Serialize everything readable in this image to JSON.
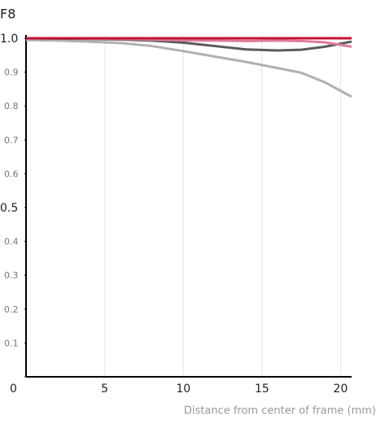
{
  "chart_data": {
    "type": "line",
    "title": "F8",
    "x_label": "Distance from center of frame (mm)",
    "x": [
      0,
      2,
      4,
      6,
      8,
      10,
      12,
      14,
      16,
      17.5,
      19,
      20.7
    ],
    "series": [
      {
        "color": "#c41236",
        "values": [
          1.0,
          1.0,
          1.0,
          1.0,
          1.0,
          1.0,
          1.0,
          1.0,
          1.0,
          1.0,
          1.0,
          1.0
        ]
      },
      {
        "color": "#e07a98",
        "values": [
          1.0,
          1.0,
          0.999,
          0.998,
          0.996,
          0.994,
          0.993,
          0.992,
          0.993,
          0.992,
          0.988,
          0.975
        ]
      },
      {
        "color": "#5a5a5a",
        "values": [
          1.0,
          0.999,
          0.998,
          0.996,
          0.993,
          0.987,
          0.977,
          0.967,
          0.964,
          0.966,
          0.975,
          0.99
        ]
      },
      {
        "color": "#b0b0b0",
        "values": [
          0.995,
          0.993,
          0.99,
          0.986,
          0.977,
          0.962,
          0.946,
          0.93,
          0.912,
          0.898,
          0.87,
          0.827
        ]
      }
    ],
    "xlim": [
      0,
      20.7
    ],
    "xticks": [
      0,
      5,
      10,
      15,
      20
    ],
    "ylim": [
      0,
      1
    ],
    "yticks": [
      0,
      0.1,
      0.2,
      0.3,
      0.4,
      0.5,
      0.6,
      0.7,
      0.8,
      0.9,
      {
        "value": 1,
        "label": "1.0"
      }
    ],
    "grid": true
  }
}
